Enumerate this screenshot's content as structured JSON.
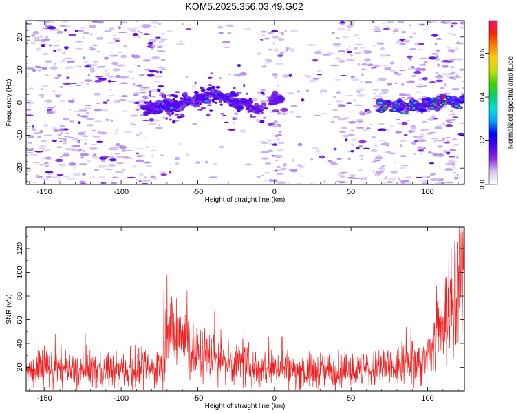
{
  "title": "KOM5.2025.356.03.49.G02",
  "chart_data": [
    {
      "type": "heatmap",
      "name": "spectrogram",
      "title": "KOM5.2025.356.03.49.G02",
      "xlabel": "Height of straight line (km)",
      "ylabel": "Frequency (Hz)",
      "xlim": [
        -162,
        124
      ],
      "ylim": [
        -25,
        25
      ],
      "xticks": [
        -150,
        -100,
        -50,
        0,
        50,
        100
      ],
      "yticks": [
        -20,
        -10,
        0,
        10,
        20
      ],
      "colorbar": {
        "label": "Normalized spectral amplitude",
        "range": [
          0.0,
          0.75
        ],
        "ticks": [
          0.0,
          0.2,
          0.4,
          0.6
        ],
        "tick_labels": [
          "0.0",
          "0.2",
          "0.4",
          "0.6"
        ],
        "colors": [
          "#ffffff",
          "#d8c8f0",
          "#9030e0",
          "#5000f0",
          "#0000ff",
          "#00a0ff",
          "#00e0e0",
          "#00d070",
          "#40d000",
          "#c0e000",
          "#ffd000",
          "#ff8000",
          "#ff2000",
          "#ff1070"
        ]
      },
      "dominant_tone": {
        "x": [
          -80,
          -70,
          -60,
          -50,
          -40,
          -30,
          -20,
          -12,
          0,
          70,
          80,
          90,
          100,
          110,
          120
        ],
        "y": [
          -1.5,
          -1.0,
          -0.5,
          1.5,
          2.5,
          1.0,
          0.0,
          -2.0,
          1.0,
          -1.0,
          -1.0,
          -1.2,
          -0.5,
          0.0,
          0.5
        ],
        "amplitude": [
          0.2,
          0.35,
          0.3,
          0.25,
          0.3,
          0.25,
          0.2,
          0.15,
          0.15,
          0.4,
          0.45,
          0.5,
          0.35,
          0.7,
          0.35
        ]
      }
    },
    {
      "type": "line",
      "name": "snr",
      "xlabel": "Height of straight line (km)",
      "ylabel": "SNR (v/v)",
      "xlim": [
        -162,
        124
      ],
      "ylim": [
        0,
        138
      ],
      "xticks": [
        -150,
        -100,
        -50,
        0,
        50,
        100
      ],
      "yticks": [
        20,
        40,
        60,
        80,
        100,
        120
      ],
      "color": "#ee2222",
      "series": [
        {
          "name": "SNR",
          "x": [
            -162,
            -150,
            -140,
            -130,
            -120,
            -110,
            -100,
            -90,
            -80,
            -75,
            -72,
            -70,
            -68,
            -65,
            -62,
            -60,
            -55,
            -50,
            -45,
            -40,
            -35,
            -30,
            -25,
            -20,
            -15,
            -10,
            -5,
            0,
            5,
            10,
            20,
            30,
            40,
            50,
            60,
            70,
            80,
            90,
            95,
            100,
            105,
            110,
            115,
            120,
            124
          ],
          "values": [
            16,
            17,
            18,
            16,
            17,
            16,
            17,
            18,
            18,
            20,
            32,
            60,
            52,
            45,
            48,
            55,
            35,
            32,
            30,
            28,
            27,
            24,
            22,
            22,
            20,
            20,
            18,
            18,
            22,
            17,
            16,
            16,
            17,
            17,
            17,
            18,
            20,
            23,
            22,
            25,
            38,
            55,
            72,
            90,
            105
          ],
          "peaks": {
            "x": [
              -143,
              -72,
              -70,
              -64,
              -57,
              -47,
              -40,
              -35,
              -20,
              5,
              30,
              90,
              100,
              110,
              115,
              121,
              123
            ],
            "values": [
              48,
              85,
              98,
              78,
              84,
              50,
              55,
              52,
              48,
              46,
              32,
              42,
              40,
              62,
              82,
              118,
              134
            ]
          }
        }
      ]
    }
  ]
}
